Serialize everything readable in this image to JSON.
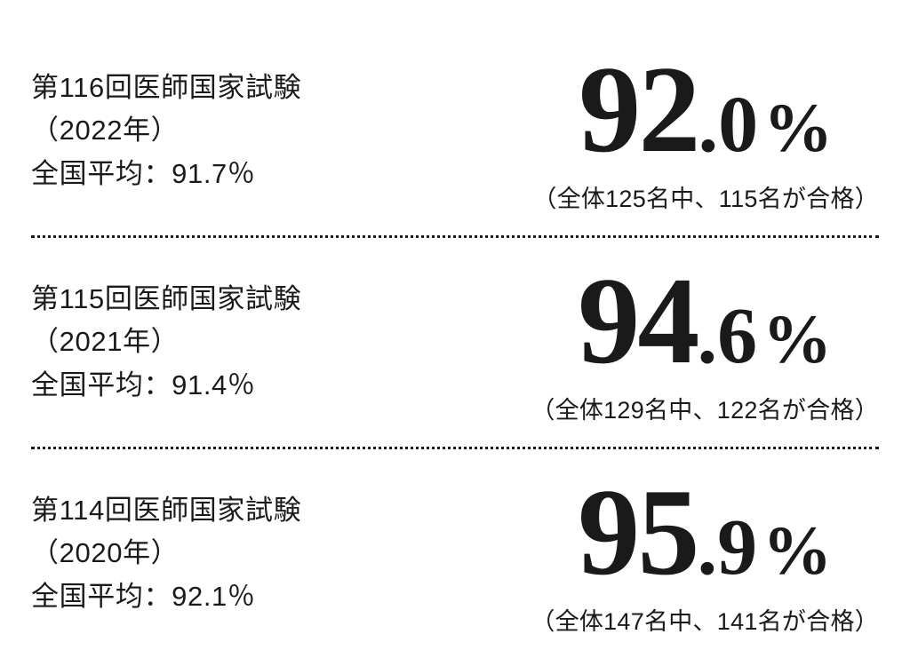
{
  "rows": [
    {
      "title": "第116回医師国家試験",
      "year": "（2022年）",
      "avg": "全国平均：91.7％",
      "int": "92",
      "dec": ".0",
      "unit": "%",
      "detail": "（全体125名中、115名が合格）"
    },
    {
      "title": "第115回医師国家試験",
      "year": "（2021年）",
      "avg": "全国平均：91.4％",
      "int": "94",
      "dec": ".6",
      "unit": "%",
      "detail": "（全体129名中、122名が合格）"
    },
    {
      "title": "第114回医師国家試験",
      "year": "（2020年）",
      "avg": "全国平均：92.1％",
      "int": "95",
      "dec": ".9",
      "unit": "%",
      "detail": "（全体147名中、141名が合格）"
    }
  ],
  "style": {
    "text_color": "#1a1a1a",
    "bg_color": "#ffffff",
    "divider_style": "dotted",
    "left_fontsize": 31,
    "pct_int_fontsize": 140,
    "pct_dec_fontsize": 90,
    "pct_unit_fontsize": 78,
    "detail_fontsize": 27
  }
}
